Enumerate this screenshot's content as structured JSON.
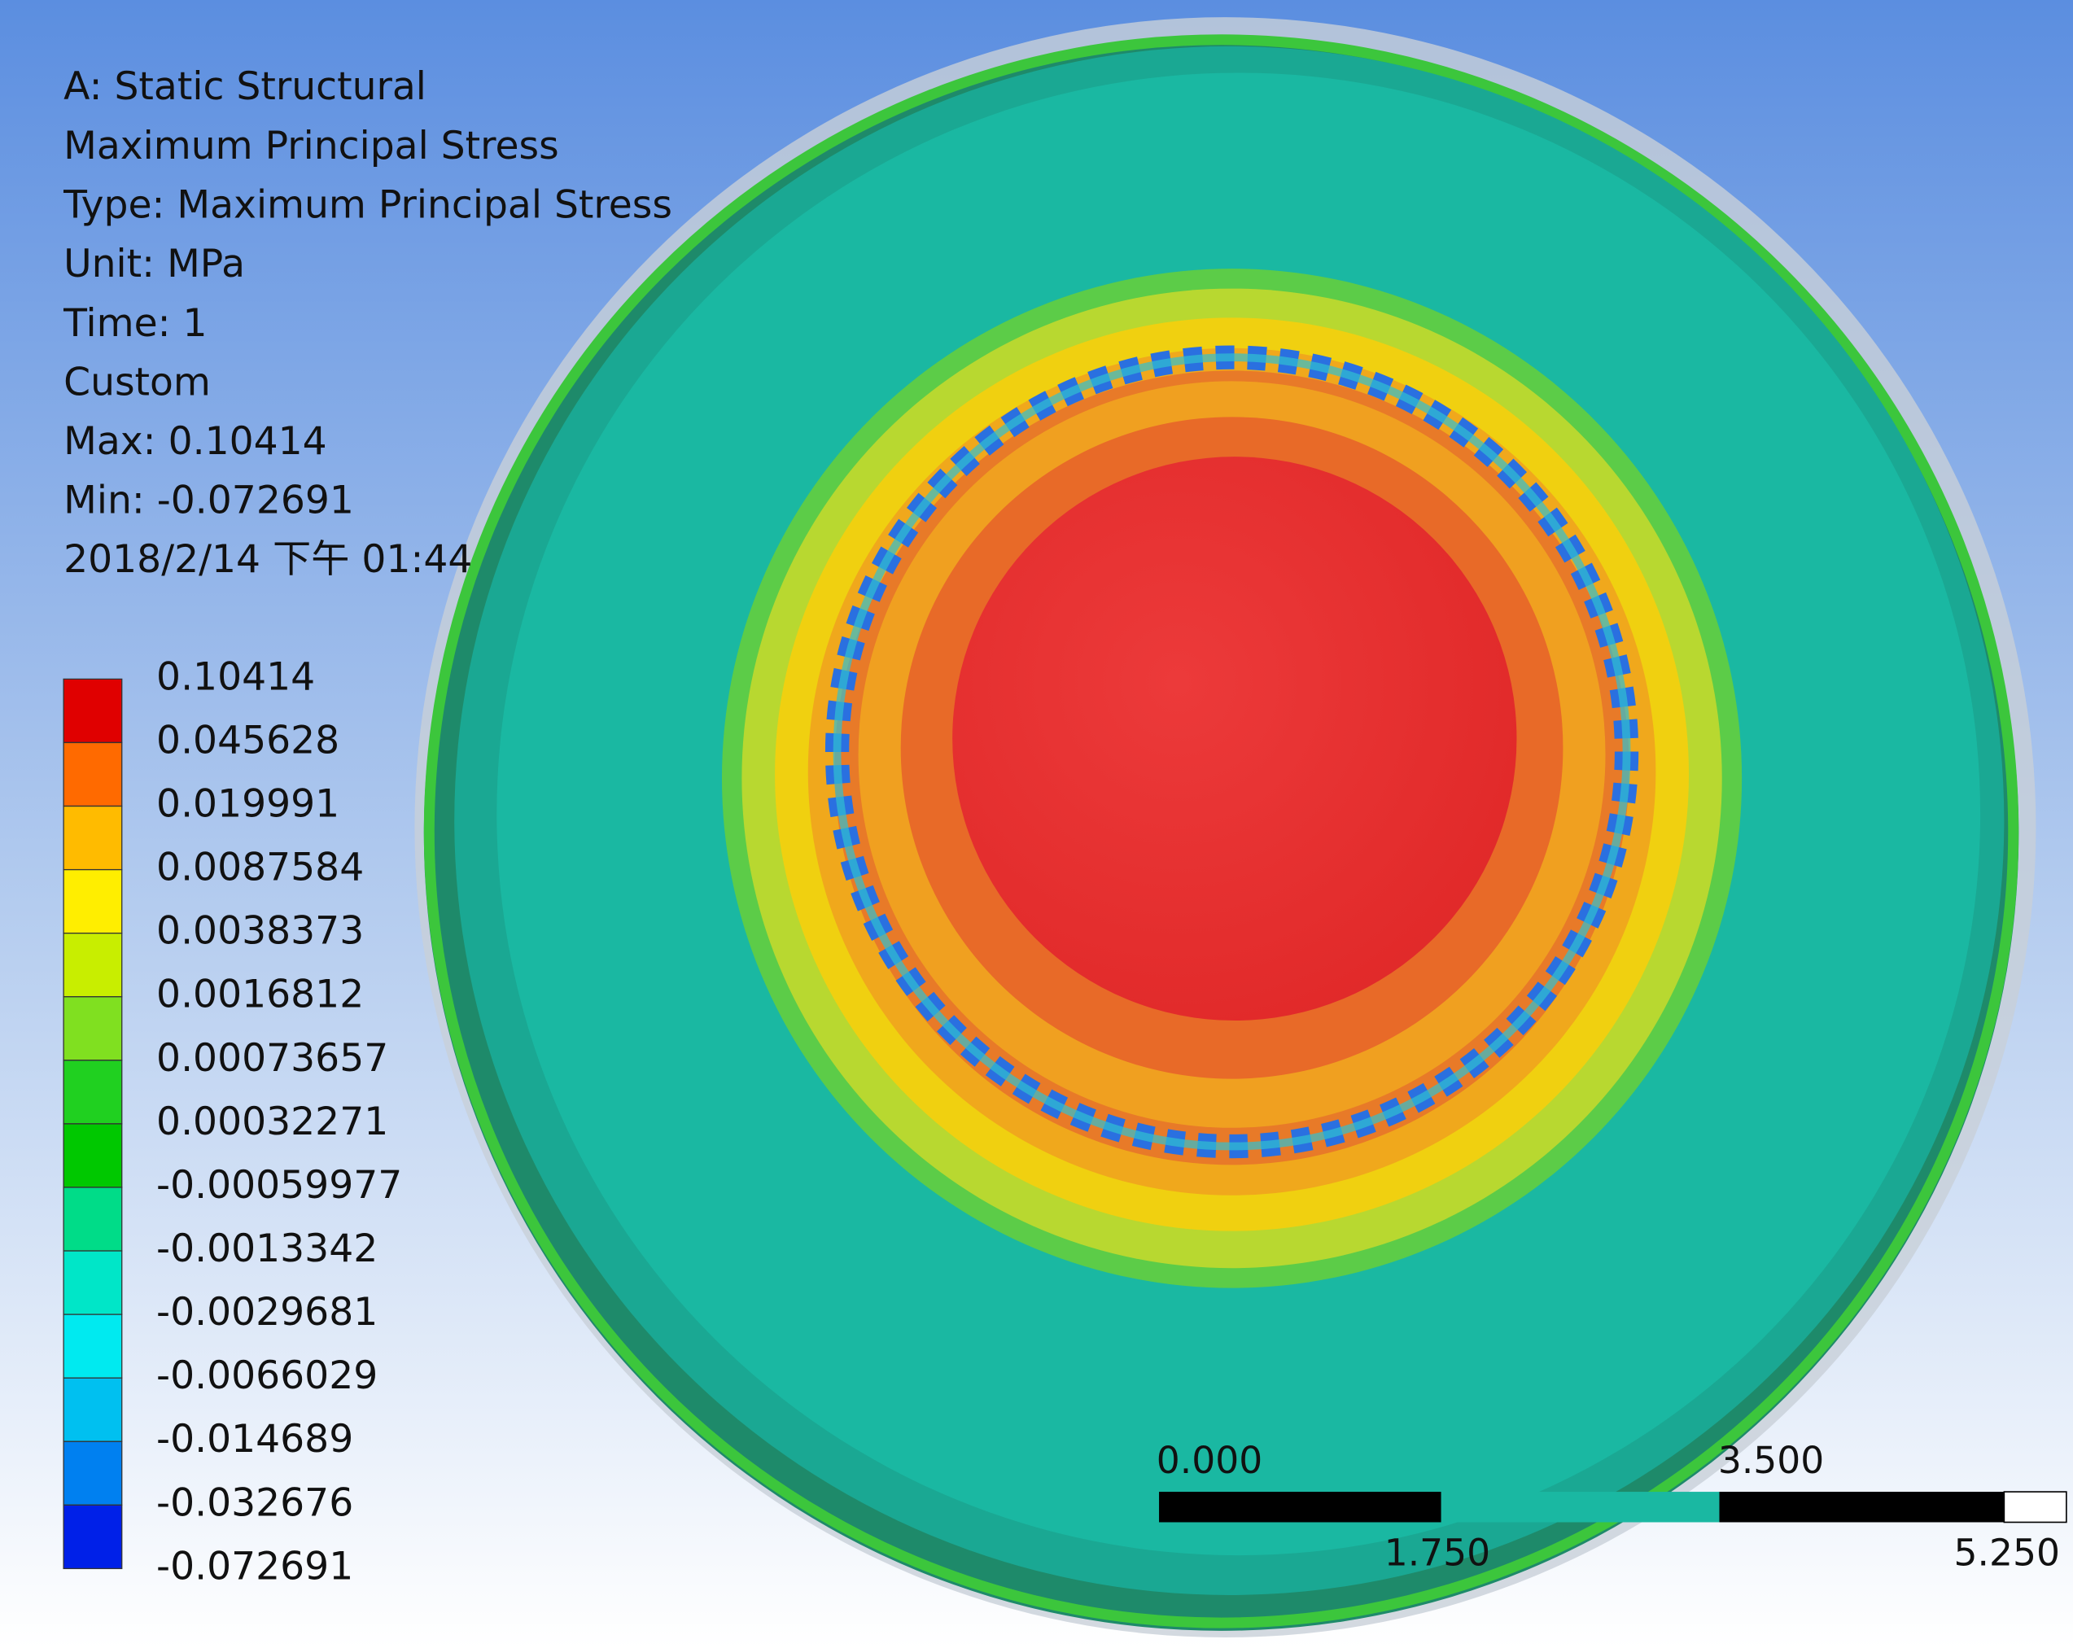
{
  "header": {
    "title": "A: Static Structural",
    "lines": [
      "Maximum Principal Stress",
      "Type: Maximum Principal Stress",
      "Unit: MPa",
      "Time: 1",
      "Custom",
      "Max: 0.10414",
      "Min: -0.072691",
      "2018/2/14 下午 01:44"
    ]
  },
  "legend": {
    "labels": [
      "0.10414",
      "0.045628",
      "0.019991",
      "0.0087584",
      "0.0038373",
      "0.0016812",
      "0.00073657",
      "0.00032271",
      "-0.00059977",
      "-0.0013342",
      "-0.0029681",
      "-0.0066029",
      "-0.014689",
      "-0.032676",
      "-0.072691"
    ]
  },
  "scale_bar": {
    "top_labels": [
      "0.000",
      "3.500"
    ],
    "bottom_labels": [
      "1.750",
      "5.250"
    ]
  }
}
